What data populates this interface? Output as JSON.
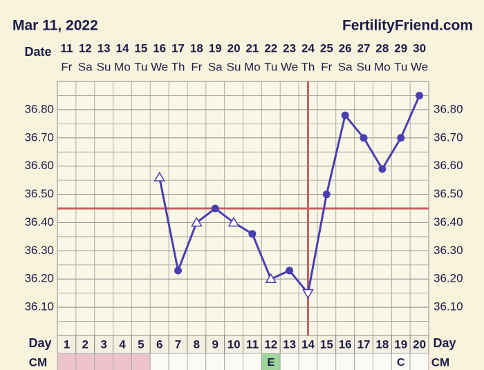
{
  "chart_data": {
    "type": "line",
    "title": "Mar 11, 2022",
    "site": "FertilityFriend.com",
    "date_label": "Date",
    "day_label": "Day",
    "cm_label": "CM",
    "dates": [
      "11",
      "12",
      "13",
      "14",
      "15",
      "16",
      "17",
      "18",
      "19",
      "20",
      "21",
      "22",
      "23",
      "24",
      "25",
      "26",
      "27",
      "28",
      "29",
      "30"
    ],
    "weekdays": [
      "Fr",
      "Sa",
      "Su",
      "Mo",
      "Tu",
      "We",
      "Th",
      "Fr",
      "Sa",
      "Su",
      "Mo",
      "Tu",
      "We",
      "Th",
      "Fr",
      "Sa",
      "Su",
      "Mo",
      "Tu",
      "We"
    ],
    "categories": [
      1,
      2,
      3,
      4,
      5,
      6,
      7,
      8,
      9,
      10,
      11,
      12,
      13,
      14,
      15,
      16,
      17,
      18,
      19,
      20
    ],
    "series": [
      {
        "color": "#4a3fb0",
        "values": [
          null,
          null,
          null,
          null,
          null,
          36.56,
          36.23,
          36.4,
          36.45,
          36.4,
          36.36,
          36.2,
          36.23,
          36.15,
          36.5,
          36.78,
          36.7,
          36.59,
          36.7,
          36.85
        ],
        "markers": [
          null,
          null,
          null,
          null,
          null,
          "triangle",
          "circle",
          "triangle",
          "circle",
          "triangle",
          "circle",
          "triangle",
          "circle",
          "triangle-down",
          "circle",
          "circle",
          "circle",
          "circle",
          "circle",
          "circle"
        ]
      }
    ],
    "cm": [
      null,
      null,
      null,
      null,
      null,
      null,
      null,
      null,
      null,
      null,
      null,
      "E",
      null,
      null,
      null,
      null,
      null,
      null,
      "C",
      null
    ],
    "cm_fill": [
      "#eec4cc",
      "#eec4cc",
      "#eec4cc",
      "#eec4cc",
      "#eec4cc",
      null,
      null,
      null,
      null,
      null,
      null,
      "#9fd49a",
      null,
      null,
      null,
      null,
      null,
      null,
      null,
      null
    ],
    "coverline": 36.45,
    "ovulation_day": 14,
    "line_color": "#c46262",
    "ylim": [
      36.0,
      36.9
    ],
    "yticks": [
      {
        "value": 36.1,
        "label": "36.10"
      },
      {
        "value": 36.2,
        "label": "36.20"
      },
      {
        "value": 36.3,
        "label": "36.30"
      },
      {
        "value": 36.4,
        "label": "36.40"
      },
      {
        "value": 36.5,
        "label": "36.50"
      },
      {
        "value": 36.6,
        "label": "36.60"
      },
      {
        "value": 36.7,
        "label": "36.70"
      },
      {
        "value": 36.8,
        "label": "36.80"
      }
    ],
    "grid": true
  }
}
